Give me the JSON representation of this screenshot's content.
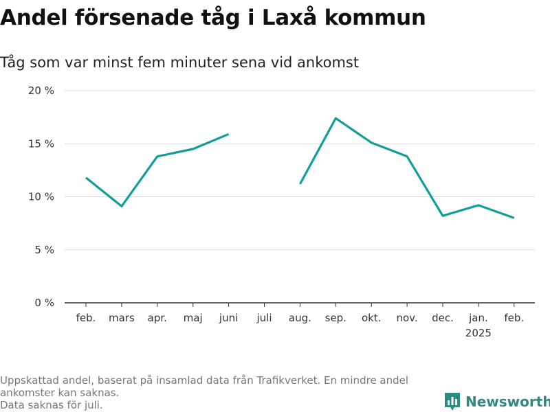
{
  "title": "Andel försenade tåg i Laxå kommun",
  "subtitle": "Tåg som var minst fem minuter sena vid ankomst",
  "footnote": {
    "line1": "Uppskattad andel, baserat på insamlad data från Trafikverket. En mindre andel ankomster kan saknas.",
    "line2": "Data saknas för juli."
  },
  "brand": {
    "name": "Newsworthy",
    "icon": "newsworthy-logo-icon",
    "color": "#2e8b82"
  },
  "chart_data": {
    "type": "line",
    "categories": [
      "feb.",
      "mars",
      "apr.",
      "maj",
      "juni",
      "juli",
      "aug.",
      "sep.",
      "okt.",
      "nov.",
      "dec.",
      "jan.\n2025",
      "feb."
    ],
    "series": [
      {
        "values": [
          11.8,
          9.1,
          13.8,
          14.5,
          15.9,
          null,
          11.2,
          17.4,
          15.1,
          13.8,
          8.2,
          9.2,
          8.0
        ],
        "color": "#119e96"
      }
    ],
    "yticks": [
      "0 %",
      "5 %",
      "10 %",
      "15 %",
      "20 %"
    ],
    "ylim": [
      0,
      20
    ],
    "grid": true
  }
}
